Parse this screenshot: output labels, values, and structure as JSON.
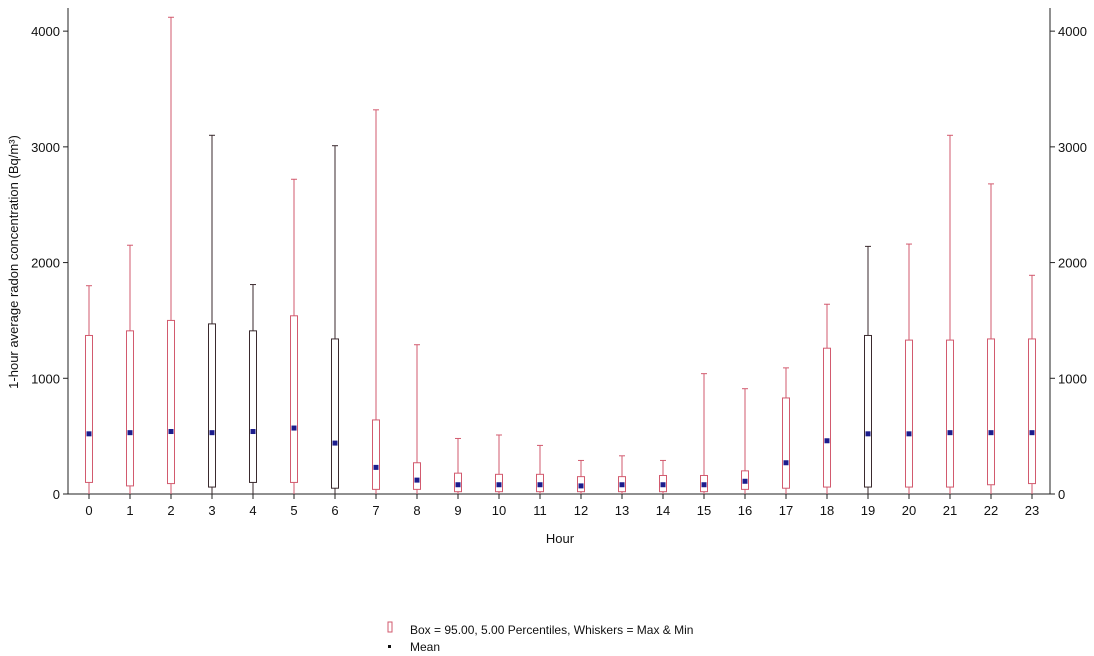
{
  "chart_data": {
    "type": "box",
    "xlabel": "Hour",
    "ylabel": "1-hour average radon concentration (Bq/m³)",
    "ylim": [
      0,
      4200
    ],
    "yticks": [
      0,
      1000,
      2000,
      3000,
      4000
    ],
    "categories": [
      "0",
      "1",
      "2",
      "3",
      "4",
      "5",
      "6",
      "7",
      "8",
      "9",
      "10",
      "11",
      "12",
      "13",
      "14",
      "15",
      "16",
      "17",
      "18",
      "19",
      "20",
      "21",
      "22",
      "23"
    ],
    "series": [
      {
        "name": "Box = 95.00, 5.00 Percentiles, Whiskers = Max & Min",
        "min": [
          0,
          0,
          0,
          0,
          0,
          0,
          0,
          0,
          0,
          0,
          0,
          0,
          0,
          0,
          0,
          0,
          0,
          0,
          0,
          0,
          0,
          0,
          0,
          0
        ],
        "p5": [
          100,
          70,
          90,
          60,
          100,
          100,
          50,
          40,
          40,
          20,
          20,
          20,
          20,
          20,
          20,
          20,
          40,
          50,
          60,
          60,
          60,
          60,
          80,
          90
        ],
        "p95": [
          1370,
          1410,
          1500,
          1470,
          1410,
          1540,
          1340,
          640,
          270,
          180,
          170,
          170,
          150,
          150,
          160,
          160,
          200,
          830,
          1260,
          1370,
          1330,
          1330,
          1340,
          1340
        ],
        "max": [
          1800,
          2150,
          4120,
          3100,
          1810,
          2720,
          3010,
          3320,
          1290,
          480,
          510,
          420,
          290,
          330,
          290,
          1040,
          910,
          1090,
          1640,
          2140,
          2160,
          3100,
          2680,
          1890
        ]
      },
      {
        "name": "Mean",
        "values": [
          520,
          530,
          540,
          530,
          540,
          570,
          440,
          230,
          120,
          80,
          80,
          80,
          70,
          80,
          80,
          80,
          110,
          270,
          460,
          520,
          520,
          530,
          530,
          530
        ]
      }
    ],
    "legend": [
      {
        "symbol": "box",
        "label": "Box = 95.00, 5.00 Percentiles, Whiskers = Max & Min"
      },
      {
        "symbol": "mean",
        "label": "Mean"
      }
    ],
    "colors": {
      "box": "#d25a6e",
      "dark_box": "#3a2a2e",
      "mean": "#1c1c8c",
      "axis": "#222222"
    }
  }
}
